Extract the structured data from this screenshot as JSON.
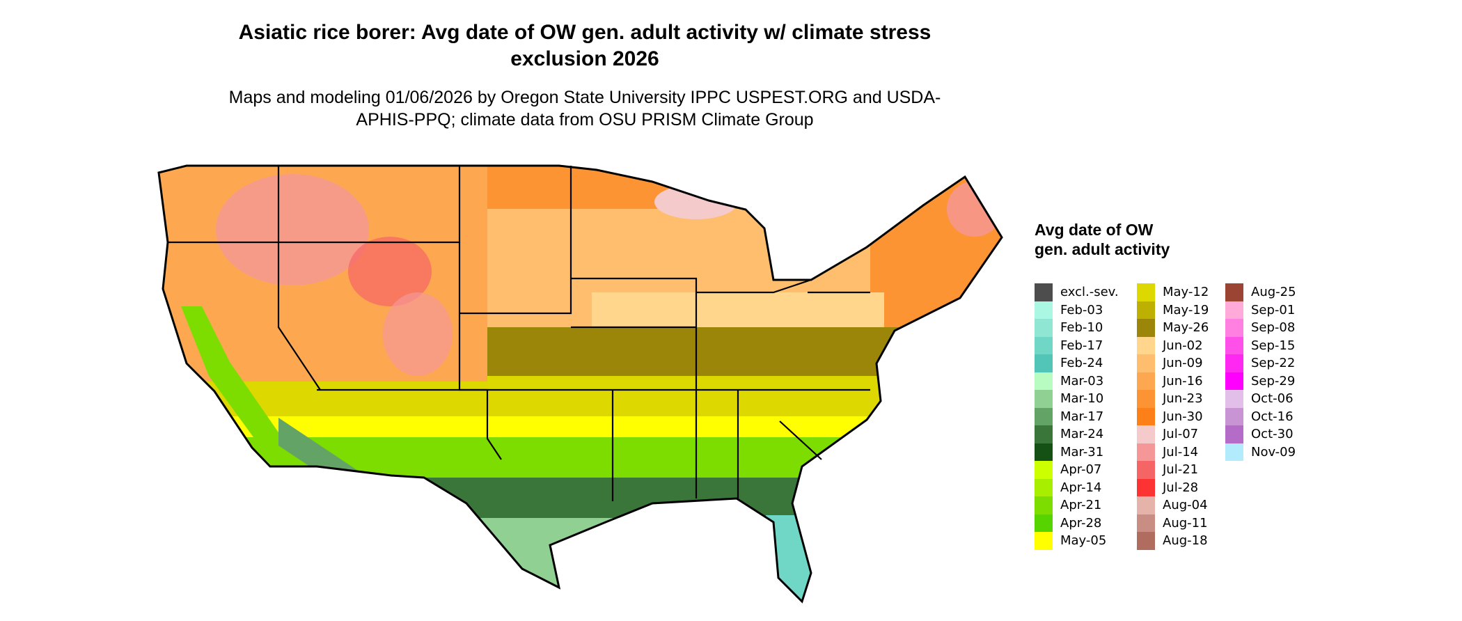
{
  "title": "Asiatic rice borer: Avg date of OW gen. adult activity w/ climate stress exclusion 2026",
  "subtitle": "Maps and modeling 01/06/2026 by Oregon State University IPPC USPEST.ORG and USDA-APHIS-PPQ; climate data from OSU PRISM Climate Group",
  "legend": {
    "title": "Avg date of OW gen. adult activity",
    "items": [
      {
        "label": "excl.-sev.",
        "color": "#4d4d4d"
      },
      {
        "label": "Feb-03",
        "color": "#aaf7e3"
      },
      {
        "label": "Feb-10",
        "color": "#8fe6d3"
      },
      {
        "label": "Feb-17",
        "color": "#70d6c6"
      },
      {
        "label": "Feb-24",
        "color": "#52c4b8"
      },
      {
        "label": "Mar-03",
        "color": "#b8fcc2"
      },
      {
        "label": "Mar-10",
        "color": "#90d093"
      },
      {
        "label": "Mar-17",
        "color": "#63a365"
      },
      {
        "label": "Mar-24",
        "color": "#3a753a"
      },
      {
        "label": "Mar-31",
        "color": "#155015"
      },
      {
        "label": "Apr-07",
        "color": "#ccff00"
      },
      {
        "label": "Apr-14",
        "color": "#a8ee00"
      },
      {
        "label": "Apr-21",
        "color": "#7edd00"
      },
      {
        "label": "Apr-28",
        "color": "#55d400"
      },
      {
        "label": "May-05",
        "color": "#ffff00"
      },
      {
        "label": "May-12",
        "color": "#ddd800"
      },
      {
        "label": "May-19",
        "color": "#bdb000"
      },
      {
        "label": "May-26",
        "color": "#9c860a"
      },
      {
        "label": "Jun-02",
        "color": "#ffd68c"
      },
      {
        "label": "Jun-09",
        "color": "#ffbe6d"
      },
      {
        "label": "Jun-16",
        "color": "#fda850"
      },
      {
        "label": "Jun-23",
        "color": "#fd9433"
      },
      {
        "label": "Jun-30",
        "color": "#fd7f18"
      },
      {
        "label": "Jul-07",
        "color": "#f5caca"
      },
      {
        "label": "Jul-14",
        "color": "#f59797"
      },
      {
        "label": "Jul-21",
        "color": "#f56565"
      },
      {
        "label": "Jul-28",
        "color": "#fd3333"
      },
      {
        "label": "Aug-04",
        "color": "#e6b3aa"
      },
      {
        "label": "Aug-11",
        "color": "#c98e83"
      },
      {
        "label": "Aug-18",
        "color": "#b06c5e"
      },
      {
        "label": "Aug-25",
        "color": "#9b4433"
      },
      {
        "label": "Sep-01",
        "color": "#ffaad8"
      },
      {
        "label": "Sep-08",
        "color": "#ff80e0"
      },
      {
        "label": "Sep-15",
        "color": "#ff50ea"
      },
      {
        "label": "Sep-22",
        "color": "#ff28f2"
      },
      {
        "label": "Sep-29",
        "color": "#ff00ff"
      },
      {
        "label": "Oct-06",
        "color": "#e2bfe8"
      },
      {
        "label": "Oct-16",
        "color": "#c894d4"
      },
      {
        "label": "Oct-30",
        "color": "#b46cc8"
      },
      {
        "label": "Nov-09",
        "color": "#b2ecfc"
      }
    ]
  }
}
